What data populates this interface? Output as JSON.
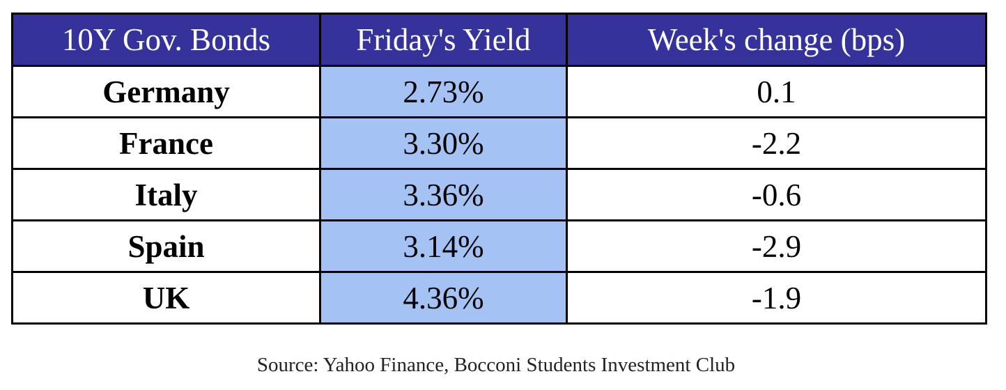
{
  "table": {
    "header": [
      "10Y Gov. Bonds",
      "Friday's Yield",
      "Week's change (bps)"
    ],
    "rows": [
      [
        "Germany",
        "2.73%",
        "0.1"
      ],
      [
        "France",
        "3.30%",
        "-2.2"
      ],
      [
        "Italy",
        "3.36%",
        "-0.6"
      ],
      [
        "Spain",
        "3.14%",
        "-2.9"
      ],
      [
        "UK",
        "4.36%",
        "-1.9"
      ]
    ]
  },
  "source": "Source: Yahoo Finance, Bocconi Students Investment Club"
}
